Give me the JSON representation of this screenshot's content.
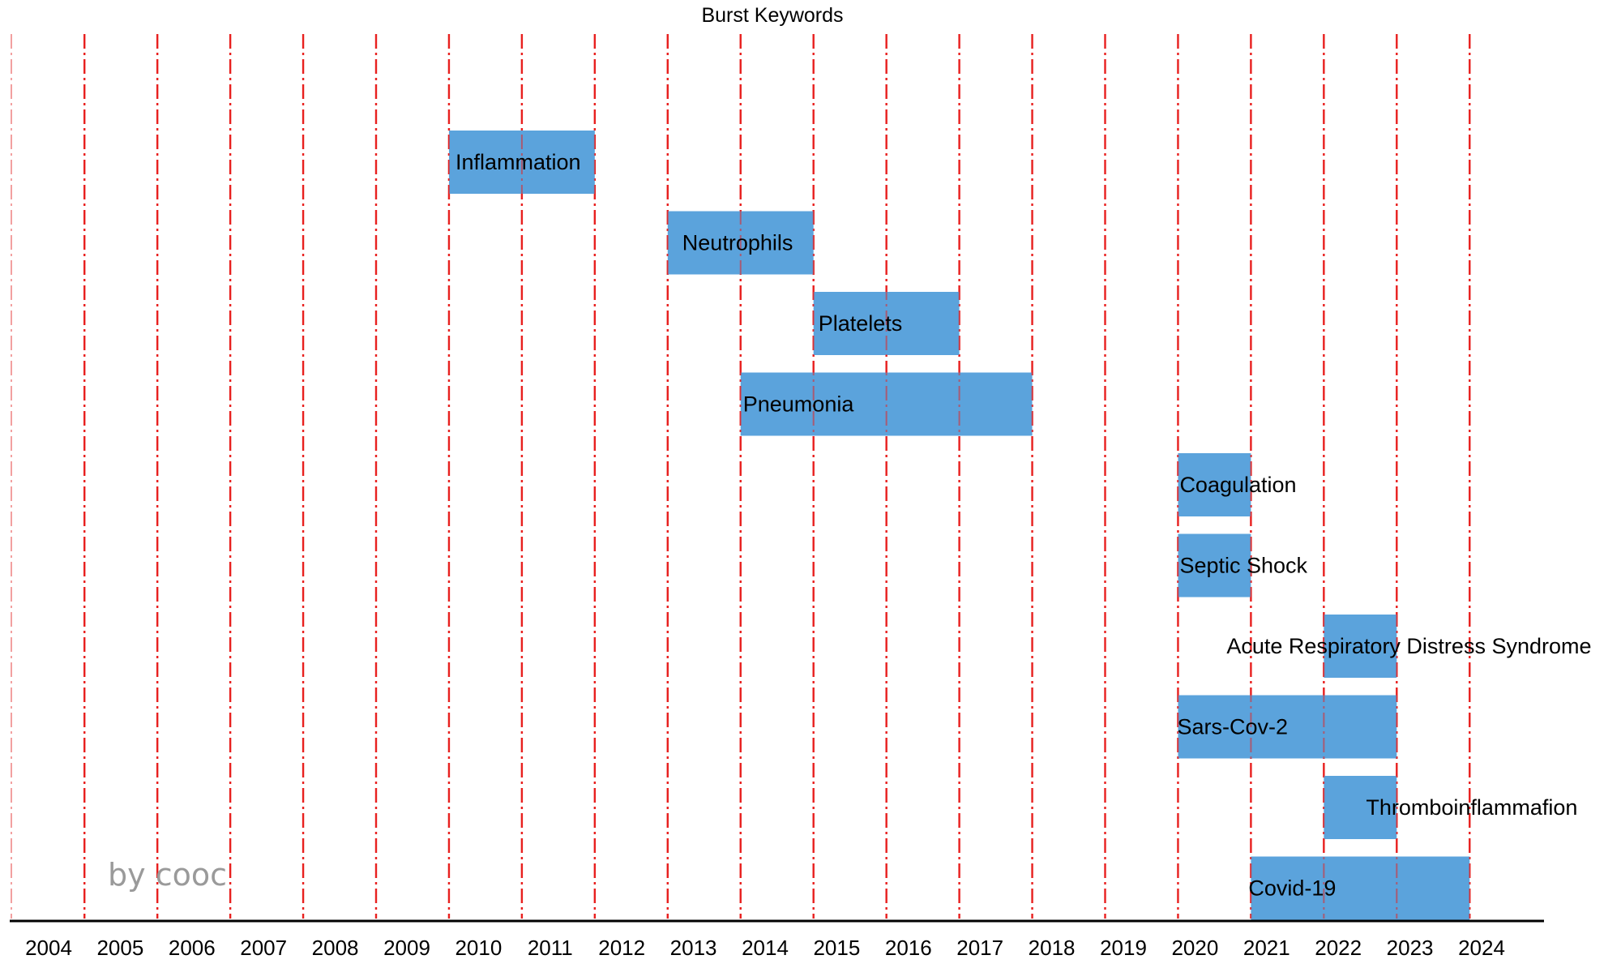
{
  "chart_data": {
    "type": "bar",
    "title": "Burst Keywords",
    "watermark": "by cooc",
    "x_ticks": [
      "2004",
      "2005",
      "2006",
      "2007",
      "2008",
      "2009",
      "2010",
      "2011",
      "2012",
      "2013",
      "2014",
      "2015",
      "2016",
      "2017",
      "2018",
      "2019",
      "2020",
      "2021",
      "2022",
      "2023",
      "2024"
    ],
    "bars": [
      {
        "label": "Inflammation",
        "start": 2010,
        "end": 2011
      },
      {
        "label": "Neutrophils",
        "start": 2013,
        "end": 2014
      },
      {
        "label": "Platelets",
        "start": 2015,
        "end": 2016
      },
      {
        "label": "Pneumonia",
        "start": 2014,
        "end": 2017
      },
      {
        "label": "Coagulation",
        "start": 2020,
        "end": 2020
      },
      {
        "label": "Septic Shock",
        "start": 2020,
        "end": 2020
      },
      {
        "label": "Acute Respiratory Distress Syndrome",
        "start": 2022,
        "end": 2022
      },
      {
        "label": "Sars-Cov-2",
        "start": 2020,
        "end": 2022
      },
      {
        "label": "Thromboinflammafion",
        "start": 2022,
        "end": 2022
      },
      {
        "label": "Covid-19",
        "start": 2021,
        "end": 2023
      }
    ],
    "colors": {
      "bar": "#5ba3dc",
      "gridline": "#e8201f",
      "axis": "#000000",
      "watermark": "#9a9a9a"
    },
    "grid": true,
    "legend": "none"
  }
}
